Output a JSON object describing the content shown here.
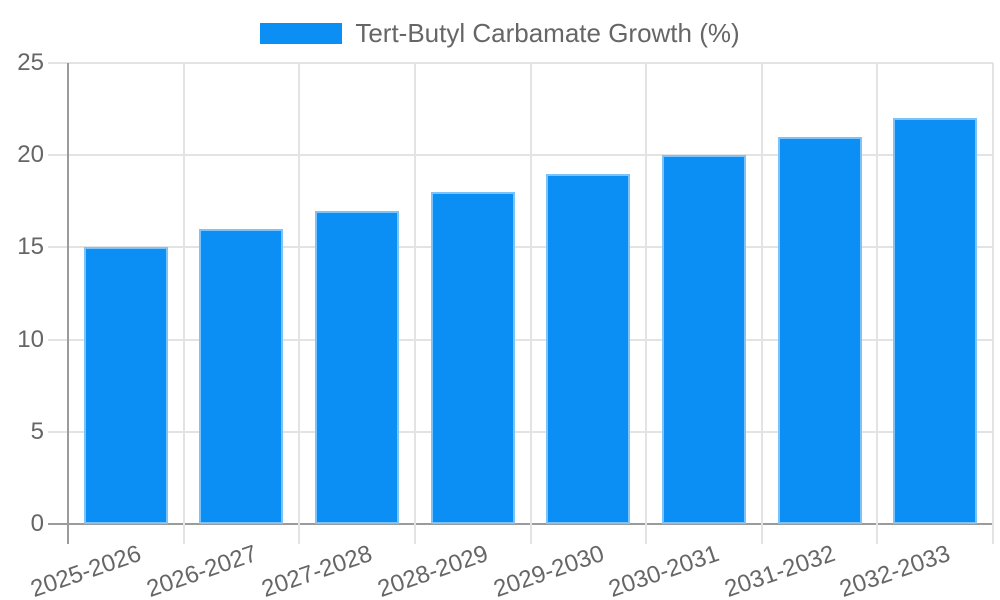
{
  "legend": {
    "position": "top",
    "swatch_color": "#0b8ff5"
  },
  "chart_data": {
    "type": "bar",
    "title": "Tert-Butyl Carbamate Growth (%)",
    "categories": [
      "2025-2026",
      "2026-2027",
      "2027-2028",
      "2028-2029",
      "2029-2030",
      "2030-2031",
      "2031-2032",
      "2032-2033"
    ],
    "values": [
      15,
      16,
      17,
      18,
      19,
      20,
      21,
      22
    ],
    "xlabel": "",
    "ylabel": "",
    "ylim": [
      0,
      25
    ],
    "yticks": [
      0,
      5,
      10,
      15,
      20,
      25
    ],
    "grid": true,
    "legend_position": "top",
    "x_tick_rotation_deg": -19,
    "bar_color": "#0b8ff5",
    "bar_border_color": "#7cc2fb",
    "value_label_color": "#ffffff",
    "axis_text_color": "#666666",
    "grid_color": "#e3e3e3",
    "axis_line_color": "#9b9b9b",
    "background_color": "#ffffff"
  }
}
